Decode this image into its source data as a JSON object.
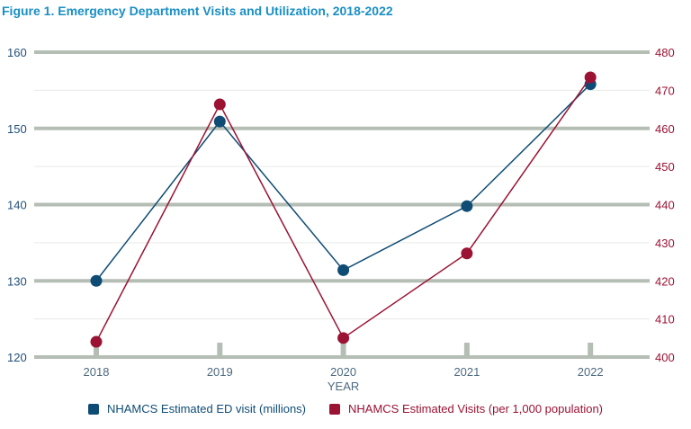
{
  "title": "Figure 1. Emergency Department Visits and Utilization, 2018-2022",
  "chart_data": {
    "type": "line",
    "title": "Figure 1. Emergency Department Visits and Utilization, 2018-2022",
    "xlabel": "YEAR",
    "categories": [
      "2018",
      "2019",
      "2020",
      "2021",
      "2022"
    ],
    "y_left": {
      "ylim": [
        120,
        160
      ],
      "ticks": [
        "120",
        "130",
        "140",
        "150",
        "160"
      ],
      "color": "#1f4e79"
    },
    "y_right": {
      "ylim": [
        400,
        480
      ],
      "ticks": [
        "400",
        "410",
        "420",
        "430",
        "440",
        "450",
        "460",
        "470",
        "480"
      ],
      "color": "#9b1233"
    },
    "grid": true,
    "legend_position": "bottom",
    "series": [
      {
        "name": "NHAMCS Estimated ED visit (millions)",
        "axis": "left",
        "color": "#0f4c75",
        "values": [
          130.0,
          150.9,
          131.4,
          139.8,
          155.8
        ]
      },
      {
        "name": "NHAMCS Estimated Visits (per 1,000 population)",
        "axis": "right",
        "color": "#9b1233",
        "values": [
          404.0,
          466.3,
          405.0,
          427.2,
          473.4
        ]
      }
    ]
  }
}
